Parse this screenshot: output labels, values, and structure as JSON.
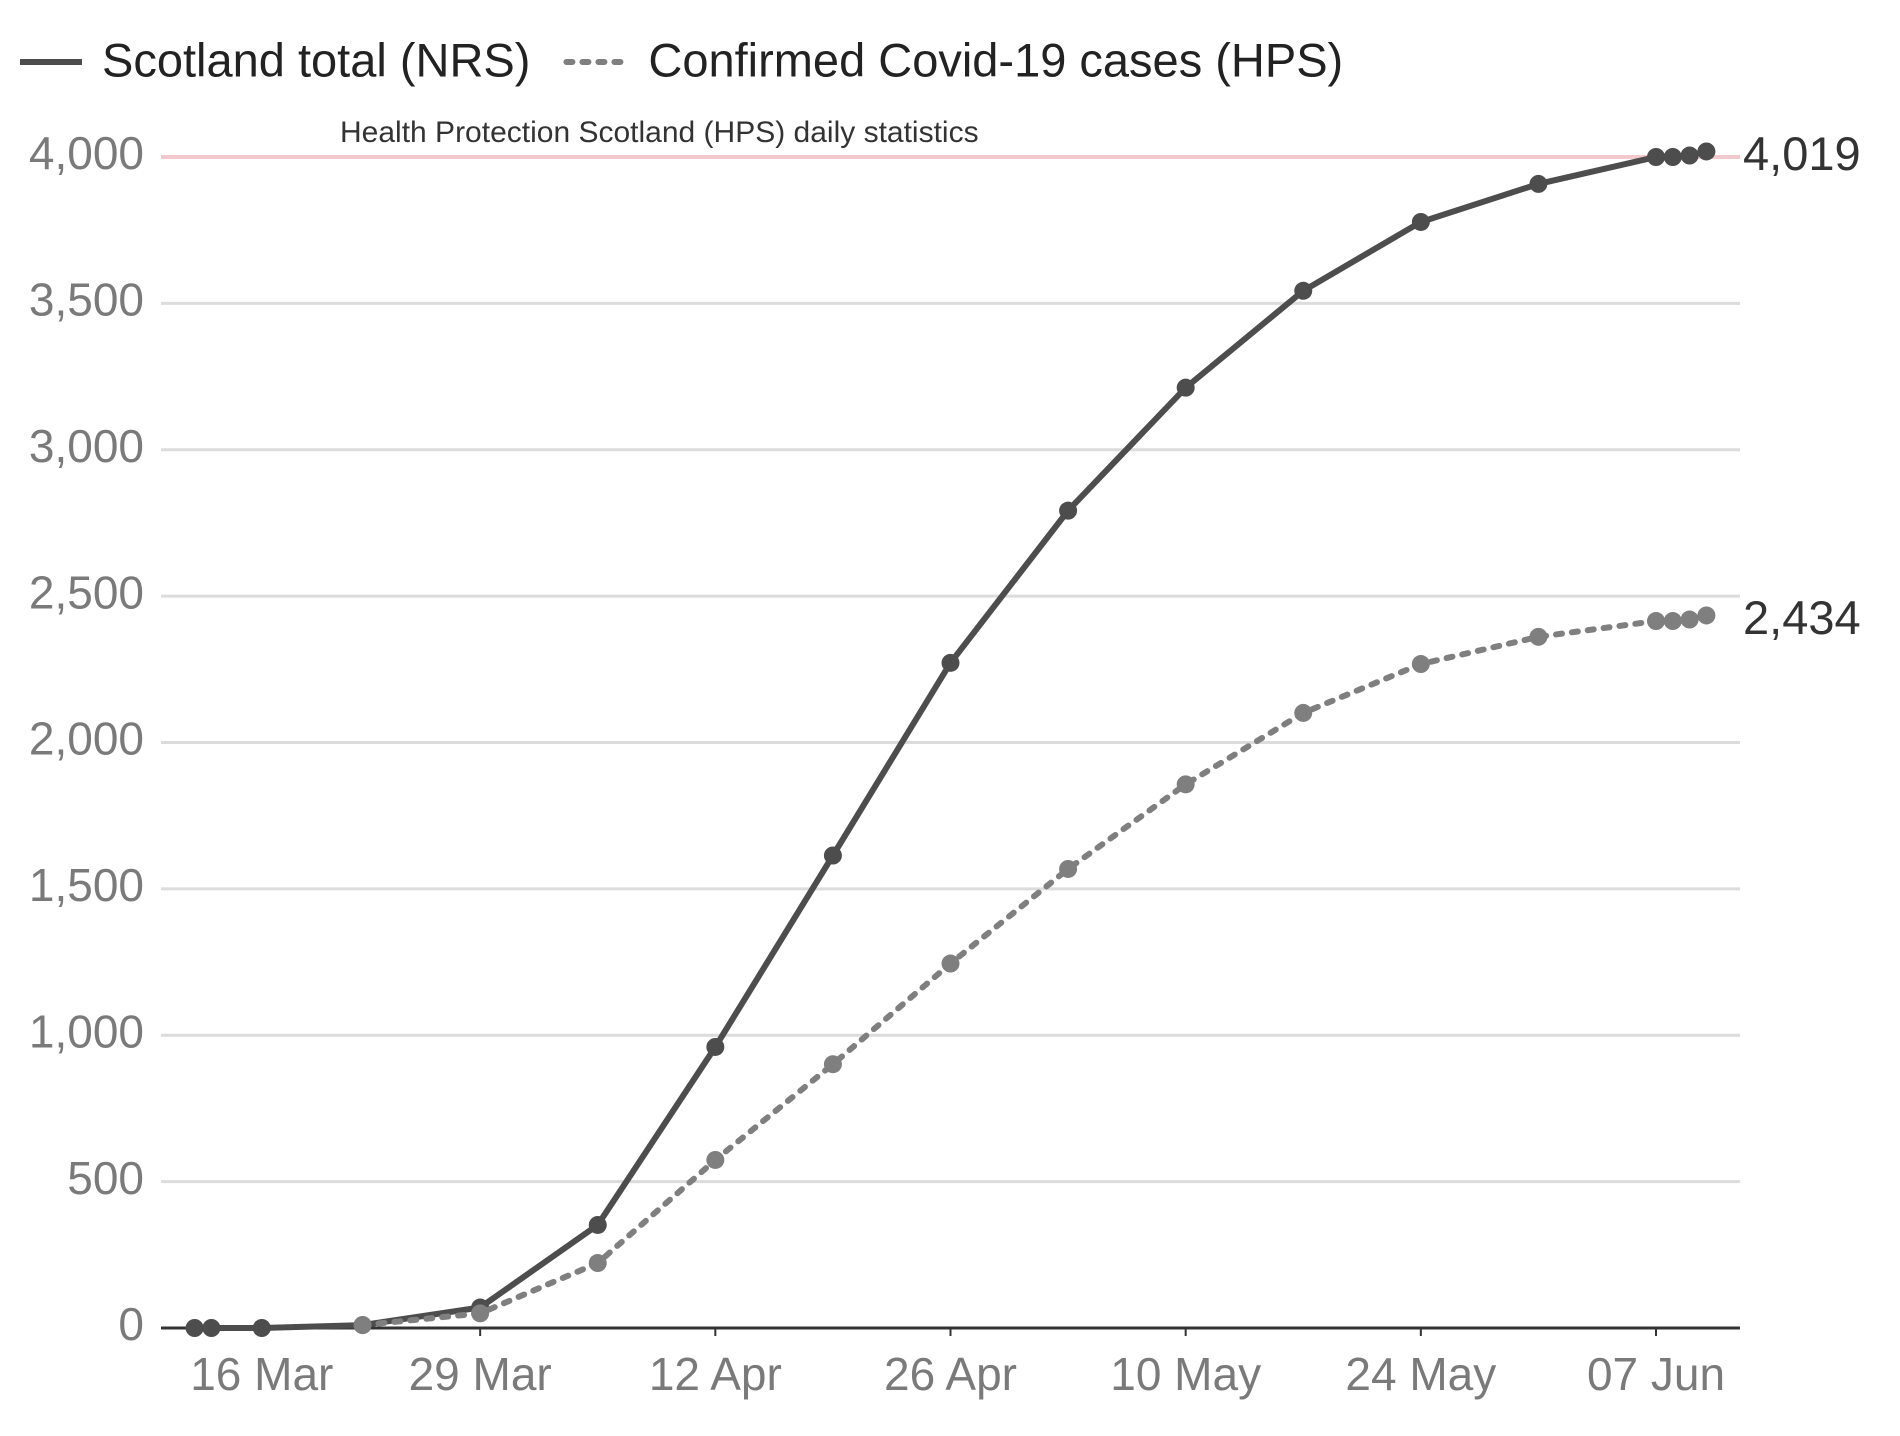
{
  "chart_data": {
    "type": "line",
    "x": [
      "12 Mar",
      "13 Mar",
      "16 Mar",
      "22 Mar",
      "29 Mar",
      "05 Apr",
      "12 Apr",
      "19 Apr",
      "26 Apr",
      "03 May",
      "10 May",
      "17 May",
      "24 May",
      "31 May",
      "07 Jun",
      "08 Jun",
      "09 Jun",
      "10 Jun"
    ],
    "series": [
      {
        "name": "Scotland total (NRS)",
        "color": "#4d4d4d",
        "style": "solid",
        "values": [
          0,
          0,
          0,
          10,
          70,
          352,
          960,
          1614,
          2272,
          2792,
          3212,
          3543,
          3778,
          3908,
          4000,
          4000,
          4005,
          4019
        ],
        "value_labels": [
          null,
          null,
          null,
          null,
          null,
          null,
          null,
          null,
          null,
          null,
          null,
          null,
          null,
          null,
          null,
          null,
          null,
          "4,019"
        ]
      },
      {
        "name": "Confirmed Covid-19 cases (HPS)",
        "color": "#7f7f7f",
        "style": "dotted",
        "values": [
          null,
          null,
          null,
          10,
          50,
          222,
          574,
          901,
          1245,
          1568,
          1857,
          2101,
          2268,
          2361,
          2415,
          2415,
          2420,
          2434
        ],
        "value_labels": [
          null,
          null,
          null,
          null,
          null,
          null,
          null,
          null,
          null,
          null,
          null,
          null,
          null,
          null,
          null,
          null,
          null,
          "2,434"
        ]
      }
    ],
    "xlim": [
      "10 Mar",
      "12 Jun"
    ],
    "xticks": [
      "16 Mar",
      "29 Mar",
      "12 Apr",
      "26 Apr",
      "10 May",
      "24 May",
      "07 Jun"
    ],
    "ylim": [
      0,
      4000
    ],
    "yticks": [
      0,
      500,
      {
        "value": 1000,
        "label": "1,000"
      },
      {
        "value": 1500,
        "label": "1,500"
      },
      {
        "value": 2000,
        "label": "2,000"
      },
      {
        "value": 2500,
        "label": "2,500"
      },
      {
        "value": 3000,
        "label": "3,000"
      },
      {
        "value": 3500,
        "label": "3,500"
      },
      {
        "value": 4000,
        "label": "4,000"
      }
    ],
    "grid": true,
    "legend": "top-left",
    "annotation": {
      "text": "Health Protection Scotland (HPS) daily statistics",
      "value": 4000,
      "color": "#f2c9cc"
    }
  }
}
